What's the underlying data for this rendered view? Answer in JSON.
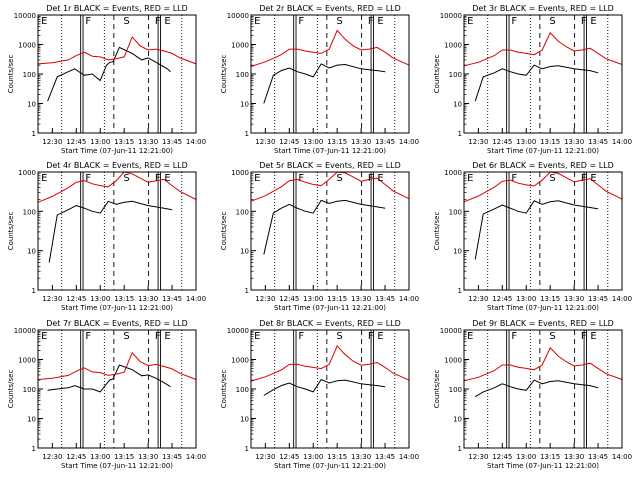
{
  "colors": {
    "events": "#000000",
    "lld": "#dd0000",
    "axes": "#000000",
    "background": "#ffffff"
  },
  "chart_data": [
    {
      "type": "line",
      "title": "Det 1r BLACK = Events, RED = LLD",
      "xlabel": "Start Time (07-Jun-11 12:21:00)",
      "ylabel": "Counts/sec",
      "yscale": "log",
      "ylim": [
        1,
        10000
      ],
      "xlim": [
        "12:21",
        "14:00"
      ],
      "x_ticks": [
        "12:30",
        "12:45",
        "13:00",
        "13:15",
        "13:30",
        "13:45",
        "14:00"
      ],
      "y_ticks": [
        "1",
        "10",
        "100",
        "1000",
        "10000"
      ],
      "markers": [
        "E",
        "F",
        "S",
        "F",
        "E"
      ],
      "series": [
        {
          "name": "Events",
          "x": [
            "12:27",
            "12:33",
            "12:40",
            "12:44",
            "12:50",
            "12:55",
            "13:00",
            "13:04",
            "13:06",
            "13:08",
            "13:12",
            "13:20",
            "13:26",
            "13:30",
            "13:35",
            "13:38",
            "13:42",
            "13:44"
          ],
          "y": [
            12,
            80,
            120,
            150,
            90,
            100,
            60,
            200,
            250,
            260,
            800,
            500,
            300,
            350,
            250,
            200,
            150,
            120
          ]
        },
        {
          "name": "LLD",
          "x": [
            "12:21",
            "12:30",
            "12:40",
            "12:45",
            "12:50",
            "12:55",
            "13:00",
            "13:05",
            "13:10",
            "13:15",
            "13:20",
            "13:25",
            "13:30",
            "13:35",
            "13:40",
            "13:45",
            "13:50",
            "14:00"
          ],
          "y": [
            220,
            240,
            300,
            420,
            550,
            400,
            380,
            300,
            330,
            380,
            1800,
            900,
            650,
            700,
            600,
            500,
            350,
            220
          ]
        }
      ]
    },
    {
      "type": "line",
      "title": "Det 2r BLACK = Events, RED = LLD",
      "xlabel": "Start Time (07-Jun-11 12:21:00)",
      "ylabel": "Counts/sec",
      "yscale": "log",
      "ylim": [
        1,
        10000
      ],
      "xlim": [
        "12:21",
        "14:00"
      ],
      "x_ticks": [
        "12:30",
        "12:45",
        "13:00",
        "13:15",
        "13:30",
        "13:45",
        "14:00"
      ],
      "y_ticks": [
        "1",
        "10",
        "100",
        "1000",
        "10000"
      ],
      "markers": [
        "E",
        "F",
        "S",
        "F",
        "E"
      ],
      "series": [
        {
          "name": "Events",
          "x": [
            "12:29",
            "12:35",
            "12:40",
            "12:45",
            "12:50",
            "12:55",
            "13:00",
            "13:05",
            "13:10",
            "13:15",
            "13:20",
            "13:30",
            "13:35",
            "13:40",
            "13:45"
          ],
          "y": [
            10,
            90,
            130,
            160,
            120,
            100,
            80,
            220,
            160,
            200,
            210,
            150,
            140,
            130,
            120
          ]
        },
        {
          "name": "LLD",
          "x": [
            "12:21",
            "12:30",
            "12:40",
            "12:45",
            "12:50",
            "12:55",
            "13:00",
            "13:05",
            "13:10",
            "13:15",
            "13:20",
            "13:25",
            "13:30",
            "13:35",
            "13:40",
            "13:45",
            "13:50",
            "14:00"
          ],
          "y": [
            180,
            260,
            450,
            700,
            700,
            600,
            550,
            500,
            700,
            3000,
            1500,
            900,
            650,
            700,
            800,
            550,
            350,
            200
          ]
        }
      ]
    },
    {
      "type": "line",
      "title": "Det 3r BLACK = Events, RED = LLD",
      "xlabel": "Start Time (07-Jun-11 12:21:00)",
      "ylabel": "Counts/sec",
      "yscale": "log",
      "ylim": [
        1,
        10000
      ],
      "xlim": [
        "12:21",
        "14:00"
      ],
      "x_ticks": [
        "12:30",
        "12:45",
        "13:00",
        "13:15",
        "13:30",
        "13:45",
        "14:00"
      ],
      "y_ticks": [
        "1",
        "10",
        "100",
        "1000",
        "10000"
      ],
      "markers": [
        "E",
        "F",
        "S",
        "F",
        "E"
      ],
      "series": [
        {
          "name": "Events",
          "x": [
            "12:28",
            "12:33",
            "12:40",
            "12:45",
            "12:50",
            "12:55",
            "13:00",
            "13:05",
            "13:10",
            "13:15",
            "13:20",
            "13:30",
            "13:35",
            "13:40",
            "13:45"
          ],
          "y": [
            12,
            80,
            110,
            150,
            120,
            100,
            90,
            200,
            150,
            180,
            190,
            150,
            140,
            130,
            110
          ]
        },
        {
          "name": "LLD",
          "x": [
            "12:21",
            "12:30",
            "12:40",
            "12:45",
            "12:50",
            "12:55",
            "13:00",
            "13:05",
            "13:10",
            "13:15",
            "13:20",
            "13:25",
            "13:30",
            "13:35",
            "13:40",
            "13:45",
            "13:50",
            "14:00"
          ],
          "y": [
            190,
            250,
            420,
            650,
            650,
            550,
            500,
            450,
            650,
            2500,
            1300,
            850,
            600,
            650,
            750,
            500,
            330,
            210
          ]
        }
      ]
    },
    {
      "type": "line",
      "title": "Det 4r BLACK = Events, RED = LLD",
      "xlabel": "Start Time (07-Jun-11 12:21:00)",
      "ylabel": "Counts/sec",
      "yscale": "log",
      "ylim": [
        1,
        1000
      ],
      "xlim": [
        "12:21",
        "14:00"
      ],
      "x_ticks": [
        "12:30",
        "12:45",
        "13:00",
        "13:15",
        "13:30",
        "13:45",
        "14:00"
      ],
      "y_ticks": [
        "1",
        "10",
        "100",
        "1000"
      ],
      "markers": [
        "E",
        "F",
        "S",
        "F",
        "E"
      ],
      "series": [
        {
          "name": "Events",
          "x": [
            "12:28",
            "12:33",
            "12:40",
            "12:45",
            "12:50",
            "12:55",
            "13:00",
            "13:05",
            "13:10",
            "13:15",
            "13:20",
            "13:30",
            "13:35",
            "13:40",
            "13:45"
          ],
          "y": [
            5,
            80,
            110,
            140,
            120,
            100,
            90,
            180,
            150,
            170,
            180,
            140,
            130,
            120,
            110
          ]
        },
        {
          "name": "LLD",
          "x": [
            "12:21",
            "12:30",
            "12:40",
            "12:45",
            "12:50",
            "12:55",
            "13:00",
            "13:05",
            "13:10",
            "13:15",
            "13:20",
            "13:25",
            "13:30",
            "13:35",
            "13:40",
            "13:45",
            "13:50",
            "14:00"
          ],
          "y": [
            170,
            240,
            400,
            550,
            600,
            500,
            450,
            420,
            600,
            1000,
            900,
            700,
            550,
            600,
            650,
            450,
            320,
            200
          ]
        }
      ]
    },
    {
      "type": "line",
      "title": "Det 5r BLACK = Events, RED = LLD",
      "xlabel": "Start Time (07-Jun-11 12:21:00)",
      "ylabel": "Counts/sec",
      "yscale": "log",
      "ylim": [
        1,
        1000
      ],
      "xlim": [
        "12:21",
        "14:00"
      ],
      "x_ticks": [
        "12:30",
        "12:45",
        "13:00",
        "13:15",
        "13:30",
        "13:45",
        "14:00"
      ],
      "y_ticks": [
        "1",
        "10",
        "100",
        "1000"
      ],
      "markers": [
        "E",
        "F",
        "S",
        "F",
        "E"
      ],
      "series": [
        {
          "name": "Events",
          "x": [
            "12:29",
            "12:35",
            "12:40",
            "12:45",
            "12:50",
            "12:55",
            "13:00",
            "13:05",
            "13:10",
            "13:15",
            "13:20",
            "13:30",
            "13:35",
            "13:40",
            "13:45"
          ],
          "y": [
            8,
            90,
            120,
            150,
            120,
            100,
            90,
            190,
            160,
            180,
            190,
            150,
            140,
            130,
            120
          ]
        },
        {
          "name": "LLD",
          "x": [
            "12:21",
            "12:30",
            "12:40",
            "12:45",
            "12:50",
            "12:55",
            "13:00",
            "13:05",
            "13:10",
            "13:15",
            "13:20",
            "13:25",
            "13:30",
            "13:35",
            "13:40",
            "13:45",
            "13:50",
            "14:00"
          ],
          "y": [
            180,
            250,
            420,
            600,
            650,
            550,
            480,
            450,
            650,
            1000,
            950,
            750,
            580,
            650,
            700,
            480,
            330,
            210
          ]
        }
      ]
    },
    {
      "type": "line",
      "title": "Det 6r BLACK = Events, RED = LLD",
      "xlabel": "Start Time (07-Jun-11 12:21:00)",
      "ylabel": "Counts/sec",
      "yscale": "log",
      "ylim": [
        1,
        1000
      ],
      "xlim": [
        "12:21",
        "14:00"
      ],
      "x_ticks": [
        "12:30",
        "12:45",
        "13:00",
        "13:15",
        "13:30",
        "13:45",
        "14:00"
      ],
      "y_ticks": [
        "1",
        "10",
        "100",
        "1000"
      ],
      "markers": [
        "E",
        "F",
        "S",
        "F",
        "E"
      ],
      "series": [
        {
          "name": "Events",
          "x": [
            "12:28",
            "12:33",
            "12:40",
            "12:45",
            "12:50",
            "12:55",
            "13:00",
            "13:05",
            "13:10",
            "13:15",
            "13:20",
            "13:30",
            "13:35",
            "13:40",
            "13:45"
          ],
          "y": [
            6,
            85,
            115,
            145,
            120,
            100,
            90,
            185,
            150,
            175,
            185,
            145,
            135,
            125,
            115
          ]
        },
        {
          "name": "LLD",
          "x": [
            "12:21",
            "12:30",
            "12:40",
            "12:45",
            "12:50",
            "12:55",
            "13:00",
            "13:05",
            "13:10",
            "13:15",
            "13:20",
            "13:25",
            "13:30",
            "13:35",
            "13:40",
            "13:45",
            "13:50",
            "14:00"
          ],
          "y": [
            175,
            245,
            410,
            580,
            620,
            520,
            470,
            440,
            620,
            1000,
            920,
            720,
            560,
            620,
            680,
            470,
            325,
            205
          ]
        }
      ]
    },
    {
      "type": "line",
      "title": "Det 7r BLACK = Events, RED = LLD",
      "xlabel": "Start Time (07-Jun-11 12:21:00)",
      "ylabel": "Counts/sec",
      "yscale": "log",
      "ylim": [
        1,
        10000
      ],
      "xlim": [
        "12:21",
        "14:00"
      ],
      "x_ticks": [
        "12:30",
        "12:45",
        "13:00",
        "13:15",
        "13:30",
        "13:45",
        "14:00"
      ],
      "y_ticks": [
        "1",
        "10",
        "100",
        "1000",
        "10000"
      ],
      "markers": [
        "E",
        "F",
        "S",
        "F",
        "E"
      ],
      "series": [
        {
          "name": "Events",
          "x": [
            "12:27",
            "12:33",
            "12:40",
            "12:44",
            "12:50",
            "12:55",
            "13:00",
            "13:04",
            "13:06",
            "13:08",
            "13:12",
            "13:20",
            "13:26",
            "13:30",
            "13:35",
            "13:38",
            "13:42",
            "13:44"
          ],
          "y": [
            90,
            100,
            110,
            130,
            100,
            100,
            80,
            150,
            200,
            220,
            650,
            450,
            280,
            300,
            230,
            190,
            140,
            120
          ]
        },
        {
          "name": "LLD",
          "x": [
            "12:21",
            "12:30",
            "12:40",
            "12:45",
            "12:50",
            "12:55",
            "13:00",
            "13:05",
            "13:10",
            "13:15",
            "13:20",
            "13:25",
            "13:30",
            "13:35",
            "13:40",
            "13:45",
            "13:50",
            "14:00"
          ],
          "y": [
            210,
            230,
            290,
            400,
            520,
            380,
            360,
            290,
            320,
            370,
            1700,
            850,
            620,
            680,
            580,
            480,
            340,
            210
          ]
        }
      ]
    },
    {
      "type": "line",
      "title": "Det 8r BLACK = Events, RED = LLD",
      "xlabel": "Start Time (07-Jun-11 12:21:00)",
      "ylabel": "Counts/sec",
      "yscale": "log",
      "ylim": [
        1,
        10000
      ],
      "xlim": [
        "12:21",
        "14:00"
      ],
      "x_ticks": [
        "12:30",
        "12:45",
        "13:00",
        "13:15",
        "13:30",
        "13:45",
        "14:00"
      ],
      "y_ticks": [
        "1",
        "10",
        "100",
        "1000",
        "10000"
      ],
      "markers": [
        "E",
        "F",
        "S",
        "F",
        "E"
      ],
      "series": [
        {
          "name": "Events",
          "x": [
            "12:29",
            "12:35",
            "12:40",
            "12:45",
            "12:50",
            "12:55",
            "13:00",
            "13:05",
            "13:10",
            "13:15",
            "13:20",
            "13:30",
            "13:35",
            "13:40",
            "13:45"
          ],
          "y": [
            60,
            95,
            130,
            160,
            120,
            100,
            80,
            210,
            160,
            190,
            200,
            150,
            140,
            130,
            120
          ]
        },
        {
          "name": "LLD",
          "x": [
            "12:21",
            "12:30",
            "12:40",
            "12:45",
            "12:50",
            "12:55",
            "13:00",
            "13:05",
            "13:10",
            "13:15",
            "13:20",
            "13:25",
            "13:30",
            "13:35",
            "13:40",
            "13:45",
            "13:50",
            "14:00"
          ],
          "y": [
            185,
            260,
            440,
            680,
            690,
            590,
            540,
            490,
            690,
            2900,
            1450,
            880,
            640,
            690,
            790,
            540,
            345,
            200
          ]
        }
      ]
    },
    {
      "type": "line",
      "title": "Det 9r BLACK = Events, RED = LLD",
      "xlabel": "Start Time (07-Jun-11 12:21:00)",
      "ylabel": "Counts/sec",
      "yscale": "log",
      "ylim": [
        1,
        10000
      ],
      "xlim": [
        "12:21",
        "14:00"
      ],
      "x_ticks": [
        "12:30",
        "12:45",
        "13:00",
        "13:15",
        "13:30",
        "13:45",
        "14:00"
      ],
      "y_ticks": [
        "1",
        "10",
        "100",
        "1000",
        "10000"
      ],
      "markers": [
        "E",
        "F",
        "S",
        "F",
        "E"
      ],
      "series": [
        {
          "name": "Events",
          "x": [
            "12:28",
            "12:33",
            "12:40",
            "12:45",
            "12:50",
            "12:55",
            "13:00",
            "13:05",
            "13:10",
            "13:15",
            "13:20",
            "13:30",
            "13:35",
            "13:40",
            "13:45"
          ],
          "y": [
            55,
            80,
            110,
            150,
            120,
            100,
            90,
            200,
            150,
            180,
            190,
            150,
            140,
            130,
            110
          ]
        },
        {
          "name": "LLD",
          "x": [
            "12:21",
            "12:30",
            "12:40",
            "12:45",
            "12:50",
            "12:55",
            "13:00",
            "13:05",
            "13:10",
            "13:15",
            "13:20",
            "13:25",
            "13:30",
            "13:35",
            "13:40",
            "13:45",
            "13:50",
            "14:00"
          ],
          "y": [
            190,
            250,
            420,
            650,
            650,
            550,
            500,
            450,
            650,
            2500,
            1300,
            850,
            600,
            650,
            750,
            500,
            330,
            210
          ]
        }
      ]
    }
  ]
}
